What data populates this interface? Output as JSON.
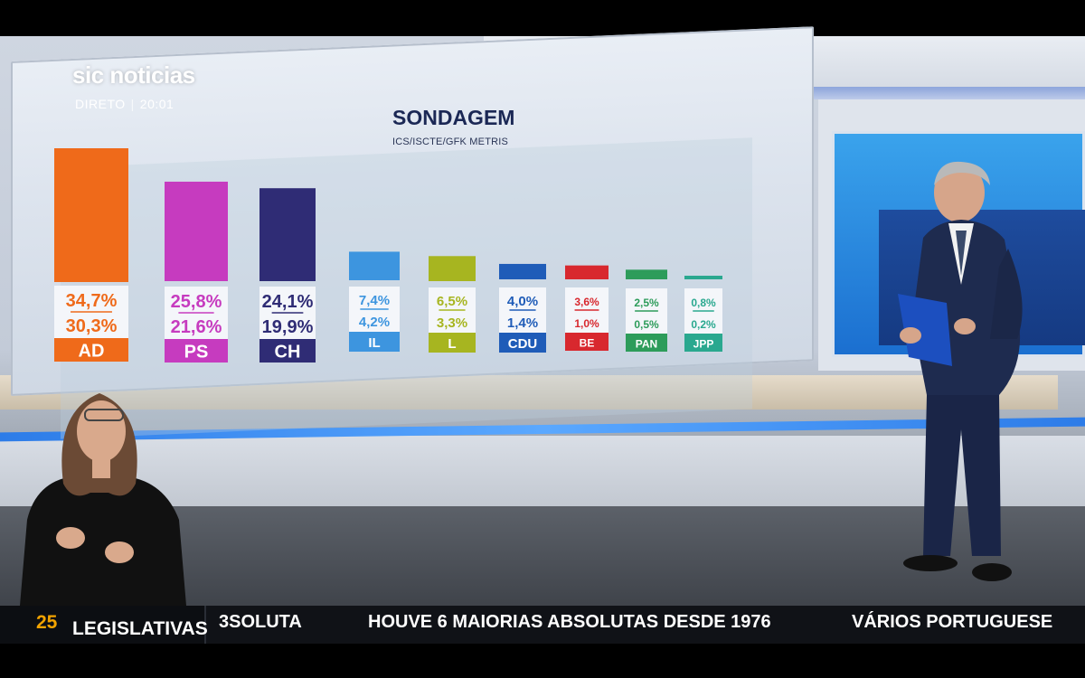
{
  "broadcast": {
    "logo": "sic noticias",
    "live_label": "DIRETO",
    "time": "20:01"
  },
  "colors": {
    "title": "#1b2855",
    "ticker_bg": "#101217",
    "ticker_accent": "#f2a300"
  },
  "chart_data": {
    "type": "bar",
    "title": "SONDAGEM",
    "subtitle": "ICS/ISCTE/GFK METRIS",
    "categories": [
      "AD",
      "PS",
      "CH",
      "IL",
      "L",
      "CDU",
      "BE",
      "PAN",
      "JPP"
    ],
    "series": [
      {
        "values": [
          34.7,
          25.8,
          24.1,
          7.4,
          6.5,
          4.0,
          3.6,
          2.5,
          0.8
        ]
      },
      {
        "values": [
          30.3,
          21.6,
          19.9,
          4.2,
          3.3,
          1.4,
          1.0,
          0.5,
          0.2
        ]
      }
    ],
    "value_labels_top": [
      "34,7%",
      "25,8%",
      "24,1%",
      "7,4%",
      "6,5%",
      "4,0%",
      "3,6%",
      "2,5%",
      "0,8%"
    ],
    "value_labels_bottom": [
      "30,3%",
      "21,6%",
      "19,9%",
      "4,2%",
      "3,3%",
      "1,4%",
      "1,0%",
      "0,5%",
      "0,2%"
    ],
    "colors": [
      "#ef6a1a",
      "#c63bbf",
      "#2f2c75",
      "#3d95df",
      "#a7b520",
      "#1f5cb8",
      "#d8282e",
      "#2d9c5a",
      "#2aa88f"
    ],
    "grid": false,
    "legend": "none"
  },
  "ticker": {
    "brand": "LEGISLATIVAS",
    "brand_number": "25",
    "segments": [
      "3SOLUTA",
      "HOUVE 6 MAIORIAS ABSOLUTAS DESDE 1976",
      "VÁRIOS PORTUGUESE"
    ]
  }
}
